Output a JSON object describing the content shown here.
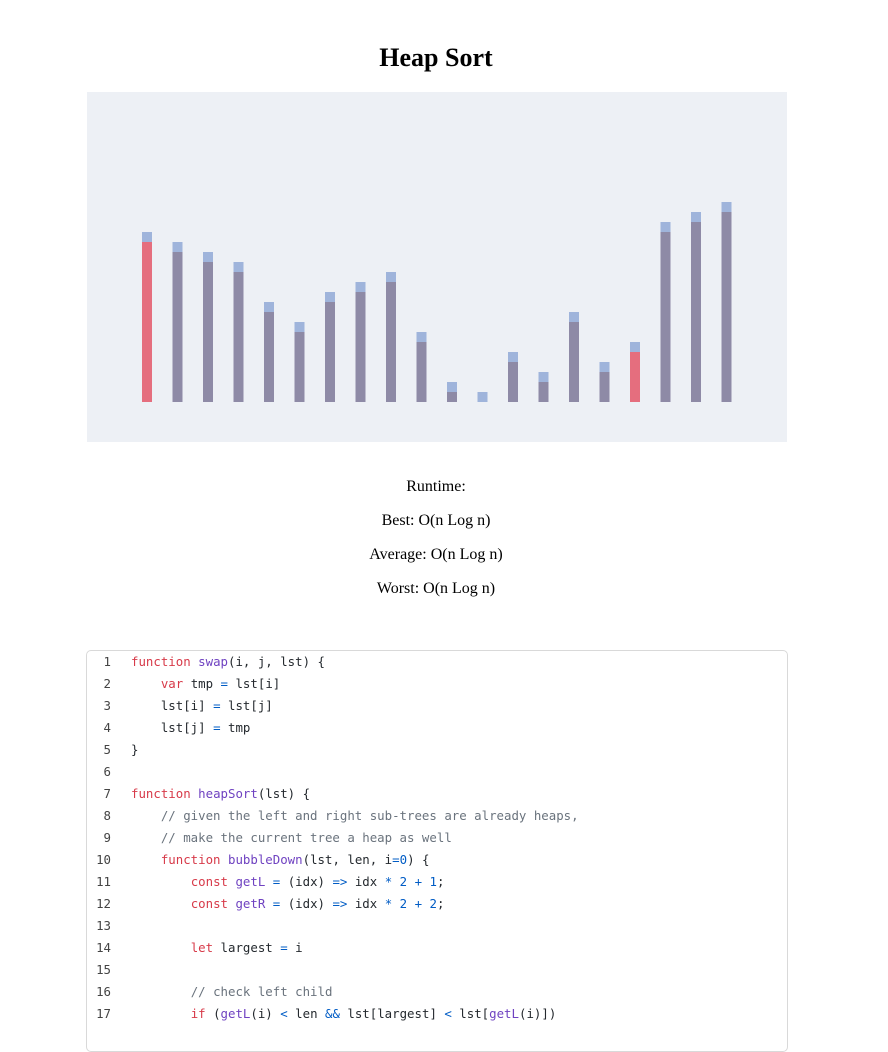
{
  "page": {
    "title": "Heap Sort"
  },
  "visualization": {
    "colors": {
      "background": "#edf0f5",
      "bar": "#8e8aa6",
      "highlight": "#e56e7e",
      "cap": "#9fb4db"
    },
    "max_value": 21,
    "highlighted_indices": [
      0,
      16
    ],
    "values": [
      17,
      16,
      15,
      14,
      10,
      8,
      11,
      12,
      13,
      7,
      2,
      1,
      5,
      3,
      9,
      4,
      6,
      18,
      19,
      20
    ]
  },
  "runtime": {
    "heading": "Runtime:",
    "best": "Best: O(n Log n)",
    "average": "Average: O(n Log n)",
    "worst": "Worst: O(n Log n)"
  },
  "code": {
    "lines": [
      [
        {
          "t": "function",
          "c": "kw"
        },
        {
          "t": " "
        },
        {
          "t": "swap",
          "c": "fn"
        },
        {
          "t": "(i, j, lst) {"
        }
      ],
      [
        {
          "t": "    "
        },
        {
          "t": "var",
          "c": "kw"
        },
        {
          "t": " tmp "
        },
        {
          "t": "=",
          "c": "op"
        },
        {
          "t": " lst[i]"
        }
      ],
      [
        {
          "t": "    lst[i] "
        },
        {
          "t": "=",
          "c": "op"
        },
        {
          "t": " lst[j]"
        }
      ],
      [
        {
          "t": "    lst[j] "
        },
        {
          "t": "=",
          "c": "op"
        },
        {
          "t": " tmp"
        }
      ],
      [
        {
          "t": "}"
        }
      ],
      [],
      [
        {
          "t": "function",
          "c": "kw"
        },
        {
          "t": " "
        },
        {
          "t": "heapSort",
          "c": "fn"
        },
        {
          "t": "(lst) {"
        }
      ],
      [
        {
          "t": "    "
        },
        {
          "t": "// given the left and right sub-trees are already heaps,",
          "c": "cm"
        }
      ],
      [
        {
          "t": "    "
        },
        {
          "t": "// make the current tree a heap as well",
          "c": "cm"
        }
      ],
      [
        {
          "t": "    "
        },
        {
          "t": "function",
          "c": "kw"
        },
        {
          "t": " "
        },
        {
          "t": "bubbleDown",
          "c": "fn"
        },
        {
          "t": "(lst, len, i"
        },
        {
          "t": "=",
          "c": "op"
        },
        {
          "t": "0",
          "c": "op"
        },
        {
          "t": ") {"
        }
      ],
      [
        {
          "t": "        "
        },
        {
          "t": "const",
          "c": "kw"
        },
        {
          "t": " "
        },
        {
          "t": "getL",
          "c": "fn"
        },
        {
          "t": " "
        },
        {
          "t": "=",
          "c": "op"
        },
        {
          "t": " (idx) "
        },
        {
          "t": "=>",
          "c": "op"
        },
        {
          "t": " idx "
        },
        {
          "t": "*",
          "c": "op"
        },
        {
          "t": " "
        },
        {
          "t": "2",
          "c": "op"
        },
        {
          "t": " "
        },
        {
          "t": "+",
          "c": "op"
        },
        {
          "t": " "
        },
        {
          "t": "1",
          "c": "op"
        },
        {
          "t": ";"
        }
      ],
      [
        {
          "t": "        "
        },
        {
          "t": "const",
          "c": "kw"
        },
        {
          "t": " "
        },
        {
          "t": "getR",
          "c": "fn"
        },
        {
          "t": " "
        },
        {
          "t": "=",
          "c": "op"
        },
        {
          "t": " (idx) "
        },
        {
          "t": "=>",
          "c": "op"
        },
        {
          "t": " idx "
        },
        {
          "t": "*",
          "c": "op"
        },
        {
          "t": " "
        },
        {
          "t": "2",
          "c": "op"
        },
        {
          "t": " "
        },
        {
          "t": "+",
          "c": "op"
        },
        {
          "t": " "
        },
        {
          "t": "2",
          "c": "op"
        },
        {
          "t": ";"
        }
      ],
      [],
      [
        {
          "t": "        "
        },
        {
          "t": "let",
          "c": "kw"
        },
        {
          "t": " largest "
        },
        {
          "t": "=",
          "c": "op"
        },
        {
          "t": " i"
        }
      ],
      [],
      [
        {
          "t": "        "
        },
        {
          "t": "// check left child",
          "c": "cm"
        }
      ],
      [
        {
          "t": "        "
        },
        {
          "t": "if",
          "c": "kw"
        },
        {
          "t": " ("
        },
        {
          "t": "getL",
          "c": "fn"
        },
        {
          "t": "(i) "
        },
        {
          "t": "<",
          "c": "op"
        },
        {
          "t": " len "
        },
        {
          "t": "&&",
          "c": "op"
        },
        {
          "t": " lst[largest] "
        },
        {
          "t": "<",
          "c": "op"
        },
        {
          "t": " lst["
        },
        {
          "t": "getL",
          "c": "fn"
        },
        {
          "t": "(i)])"
        }
      ]
    ]
  }
}
